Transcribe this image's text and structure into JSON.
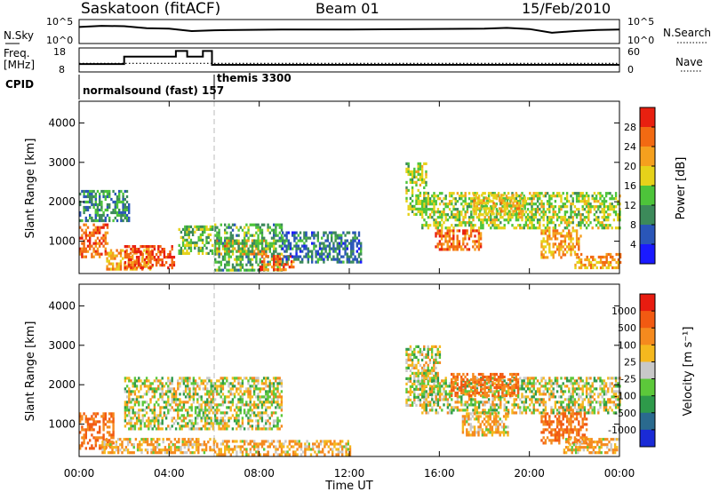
{
  "header": {
    "station": "Saskatoon (fitACF)",
    "beam": "Beam 01",
    "date": "15/Feb/2010"
  },
  "noise_panel": {
    "left_label": "N.Sky",
    "right_label": "N.Search",
    "left_ticks": [
      "10^5",
      "10^0"
    ],
    "right_ticks": [
      "10^5",
      "10^0"
    ]
  },
  "freq_panel": {
    "left_label_line1": "Freq.",
    "left_label_line2": "[MHz]",
    "right_label": "Nave",
    "left_ticks": [
      "18",
      "8"
    ],
    "right_ticks": [
      "60",
      "0"
    ]
  },
  "cpid": {
    "label": "CPID",
    "mode1": "normalsound (fast) 157",
    "mode2": "themis 3300"
  },
  "time_axis": {
    "label": "Time UT",
    "ticks": [
      "00:00",
      "04:00",
      "08:00",
      "12:00",
      "16:00",
      "20:00",
      "00:00"
    ]
  },
  "power_panel": {
    "ylabel": "Slant Range [km]",
    "yticks": [
      "1000",
      "2000",
      "3000",
      "4000"
    ],
    "cbar_label": "Power [dB]",
    "cbar_ticks": [
      "4",
      "8",
      "12",
      "16",
      "20",
      "24",
      "28"
    ],
    "cbar_colors": [
      "#1a1aff",
      "#2a56b8",
      "#3c8a5a",
      "#4dc43a",
      "#e6d21a",
      "#f5a01e",
      "#f26a12",
      "#e82010"
    ]
  },
  "velocity_panel": {
    "ylabel": "Slant Range [km]",
    "yticks": [
      "1000",
      "2000",
      "3000",
      "4000"
    ],
    "cbar_label": "Velocity [m s⁻¹]",
    "cbar_ticks": [
      "1000",
      "500",
      "100",
      "25",
      "-25",
      "-100",
      "-500",
      "-1000"
    ],
    "cbar_colors": [
      "#1a2bd6",
      "#2a6a8e",
      "#2e9a4a",
      "#5cc83a",
      "#c8c8c8",
      "#f5b81e",
      "#f58a1e",
      "#f25a12",
      "#e81c10"
    ]
  },
  "chart_data": {
    "type": "heatmap",
    "x_unit": "hours UT",
    "xlim": [
      0,
      24
    ],
    "y_unit": "km",
    "ylim": [
      180,
      4550
    ],
    "xlabel": "Time UT",
    "ylabel": "Slant Range [km]",
    "mode_change_time": 6.0,
    "noise_sky_log": [
      [
        0,
        3.6
      ],
      [
        1,
        3.9
      ],
      [
        2,
        3.8
      ],
      [
        3,
        3.3
      ],
      [
        4,
        3.2
      ],
      [
        5,
        2.6
      ],
      [
        6,
        2.8
      ],
      [
        7,
        2.9
      ],
      [
        9,
        3.0
      ],
      [
        12,
        3.0
      ],
      [
        15,
        3.1
      ],
      [
        18,
        3.2
      ],
      [
        19,
        3.4
      ],
      [
        20,
        3.1
      ],
      [
        21,
        2.2
      ],
      [
        22,
        2.6
      ],
      [
        23,
        2.9
      ],
      [
        24,
        3.0
      ]
    ],
    "frequency_mhz": [
      [
        0,
        11.0
      ],
      [
        2.0,
        11.0
      ],
      [
        2.0,
        14.6
      ],
      [
        4.3,
        14.6
      ],
      [
        4.3,
        17.4
      ],
      [
        4.8,
        17.4
      ],
      [
        4.8,
        14.6
      ],
      [
        5.5,
        14.6
      ],
      [
        5.5,
        17.4
      ],
      [
        5.9,
        17.4
      ],
      [
        5.9,
        10.6
      ],
      [
        24,
        10.6
      ]
    ],
    "nave_dotted": 20,
    "power_echo_regions": [
      {
        "t": [
          0.0,
          1.3
        ],
        "r": [
          600,
          1450
        ],
        "db": 26
      },
      {
        "t": [
          0.0,
          2.2
        ],
        "r": [
          1500,
          2300
        ],
        "db": 10
      },
      {
        "t": [
          1.2,
          3.2
        ],
        "r": [
          300,
          800
        ],
        "db": 22
      },
      {
        "t": [
          2.0,
          4.2
        ],
        "r": [
          300,
          900
        ],
        "db": 28
      },
      {
        "t": [
          4.4,
          5.9
        ],
        "r": [
          700,
          1400
        ],
        "db": 14
      },
      {
        "t": [
          6.0,
          8.3
        ],
        "r": [
          650,
          1050
        ],
        "db": 24
      },
      {
        "t": [
          6.0,
          9.0
        ],
        "r": [
          250,
          1450
        ],
        "db": 12
      },
      {
        "t": [
          8.0,
          9.5
        ],
        "r": [
          280,
          650
        ],
        "db": 26
      },
      {
        "t": [
          9.0,
          12.5
        ],
        "r": [
          450,
          1250
        ],
        "db": 8
      },
      {
        "t": [
          14.5,
          15.4
        ],
        "r": [
          1700,
          3000
        ],
        "db": 16
      },
      {
        "t": [
          15.2,
          24.0
        ],
        "r": [
          1350,
          2250
        ],
        "db": 16
      },
      {
        "t": [
          15.8,
          17.8
        ],
        "r": [
          800,
          1300
        ],
        "db": 26
      },
      {
        "t": [
          17.5,
          19.8
        ],
        "r": [
          1700,
          2200
        ],
        "db": 20
      },
      {
        "t": [
          20.5,
          22.3
        ],
        "r": [
          600,
          1300
        ],
        "db": 22
      },
      {
        "t": [
          22.0,
          24.0
        ],
        "r": [
          300,
          700
        ],
        "db": 22
      }
    ],
    "velocity_echo_regions": [
      {
        "t": [
          0.0,
          1.5
        ],
        "r": [
          400,
          1300
        ],
        "v": -500
      },
      {
        "t": [
          1.0,
          6.0
        ],
        "r": [
          300,
          650
        ],
        "v": -100
      },
      {
        "t": [
          2.0,
          9.0
        ],
        "r": [
          900,
          2200
        ],
        "v": 0
      },
      {
        "t": [
          6.0,
          12.0
        ],
        "r": [
          250,
          600
        ],
        "v": -100
      },
      {
        "t": [
          14.5,
          16.0
        ],
        "r": [
          1500,
          3000
        ],
        "v": 0
      },
      {
        "t": [
          15.2,
          24.0
        ],
        "r": [
          1300,
          2200
        ],
        "v": 0
      },
      {
        "t": [
          16.5,
          19.5
        ],
        "r": [
          1700,
          2300
        ],
        "v": -500
      },
      {
        "t": [
          17.0,
          19.0
        ],
        "r": [
          700,
          1300
        ],
        "v": -100
      },
      {
        "t": [
          20.5,
          22.5
        ],
        "r": [
          500,
          1300
        ],
        "v": -500
      },
      {
        "t": [
          21.5,
          24.0
        ],
        "r": [
          280,
          650
        ],
        "v": -100
      }
    ]
  }
}
